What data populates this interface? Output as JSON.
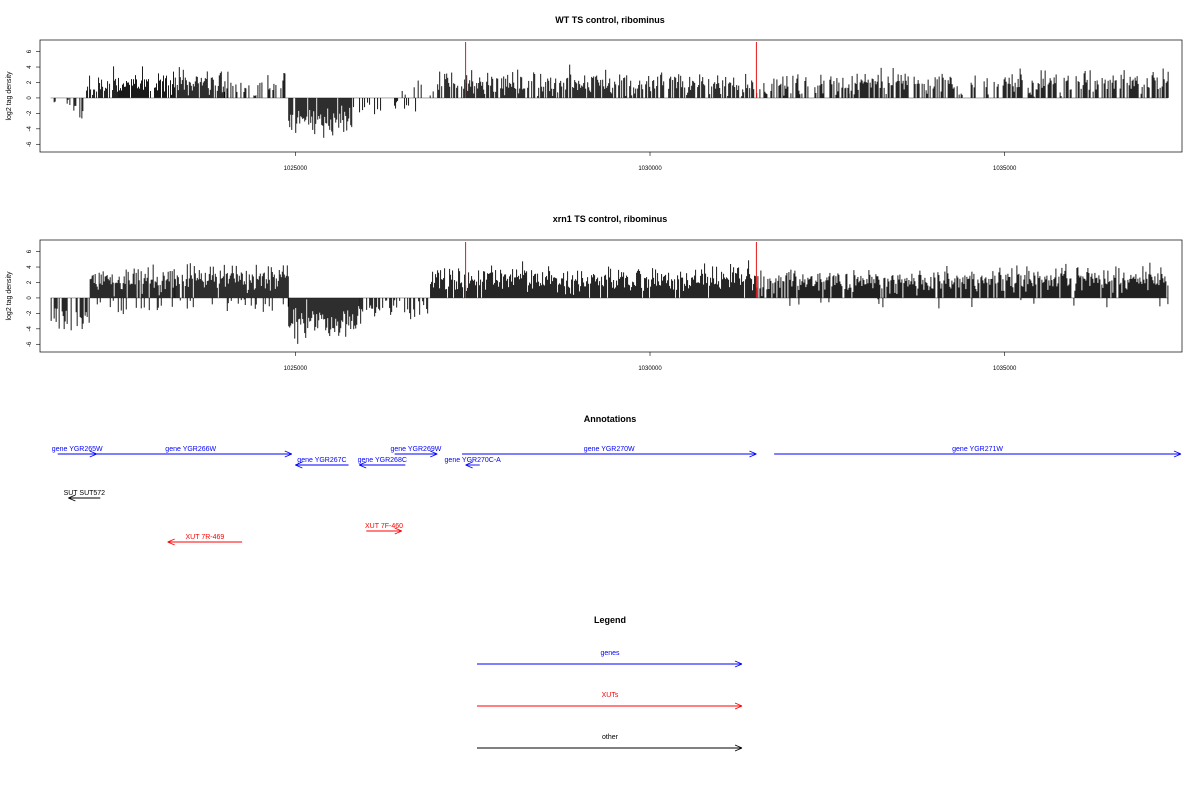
{
  "chart_data": [
    {
      "type": "bar",
      "title": "WT TS control, ribominus",
      "ylabel": "log2 tag density",
      "xlabel": "",
      "xlim": [
        1021400,
        1037500
      ],
      "ylim": [
        -7,
        7.5
      ],
      "x_ticks": [
        "1025000",
        "1030000",
        "1035000"
      ],
      "y_ticks": [
        "6",
        "4",
        "2",
        "0",
        "-2",
        "-4",
        "-6"
      ],
      "grid": false,
      "markers": [
        1027400,
        1031500
      ],
      "marker_color": "#e41a1c",
      "baseline_color": "#999999",
      "bar_color": "#000000",
      "regions": [
        {
          "from": 1021550,
          "to": 1021800,
          "mean": -0.8,
          "sd": 0.5,
          "density": 0.15
        },
        {
          "from": 1021800,
          "to": 1022000,
          "mean": -1.8,
          "sd": 0.7,
          "density": 0.5
        },
        {
          "from": 1022050,
          "to": 1022500,
          "mean": 1.6,
          "sd": 0.7,
          "density": 0.6
        },
        {
          "from": 1022500,
          "to": 1023300,
          "mean": 1.9,
          "sd": 0.8,
          "density": 0.85
        },
        {
          "from": 1023300,
          "to": 1024000,
          "mean": 2.2,
          "sd": 0.9,
          "density": 0.9
        },
        {
          "from": 1024000,
          "to": 1024900,
          "mean": 1.5,
          "sd": 0.8,
          "density": 0.5
        },
        {
          "from": 1024900,
          "to": 1025800,
          "mean": -3.0,
          "sd": 1.0,
          "density": 0.95
        },
        {
          "from": 1025800,
          "to": 1026700,
          "mean": -1.2,
          "sd": 0.6,
          "density": 0.35
        },
        {
          "from": 1026400,
          "to": 1027000,
          "mean": 1.0,
          "sd": 0.5,
          "density": 0.2
        },
        {
          "from": 1027000,
          "to": 1031500,
          "mean": 1.9,
          "sd": 0.8,
          "density": 0.75
        },
        {
          "from": 1031500,
          "to": 1032800,
          "mean": 1.8,
          "sd": 0.8,
          "density": 0.6
        },
        {
          "from": 1032800,
          "to": 1037300,
          "mean": 2.0,
          "sd": 0.8,
          "density": 0.65
        }
      ]
    },
    {
      "type": "bar",
      "title": "xrn1 TS control, ribominus",
      "ylabel": "log2 tag density",
      "xlabel": "",
      "xlim": [
        1021400,
        1037500
      ],
      "ylim": [
        -7,
        7.5
      ],
      "x_ticks": [
        "1025000",
        "1030000",
        "1035000"
      ],
      "y_ticks": [
        "6",
        "4",
        "2",
        "0",
        "-2",
        "-4",
        "-6"
      ],
      "grid": false,
      "markers": [
        1027400,
        1031500
      ],
      "marker_color": "#e41a1c",
      "baseline_color": "#999999",
      "bar_color": "#000000",
      "regions": [
        {
          "from": 1021550,
          "to": 1022100,
          "mean": -2.8,
          "sd": 0.9,
          "density": 0.7
        },
        {
          "from": 1022100,
          "to": 1023300,
          "mean": 2.4,
          "sd": 0.8,
          "density": 0.95
        },
        {
          "from": 1023300,
          "to": 1024900,
          "mean": 2.6,
          "sd": 0.9,
          "density": 0.95
        },
        {
          "from": 1022200,
          "to": 1024900,
          "mean": -1.0,
          "sd": 0.5,
          "density": 0.2
        },
        {
          "from": 1024900,
          "to": 1025900,
          "mean": -3.2,
          "sd": 1.1,
          "density": 0.98
        },
        {
          "from": 1025900,
          "to": 1026900,
          "mean": -1.5,
          "sd": 0.8,
          "density": 0.6
        },
        {
          "from": 1026900,
          "to": 1031500,
          "mean": 2.5,
          "sd": 0.9,
          "density": 0.95
        },
        {
          "from": 1031500,
          "to": 1037300,
          "mean": 2.3,
          "sd": 0.8,
          "density": 0.9
        },
        {
          "from": 1031500,
          "to": 1037300,
          "mean": -0.8,
          "sd": 0.5,
          "density": 0.05
        }
      ]
    }
  ],
  "annotations": {
    "title": "Annotations",
    "features": [
      {
        "label": "gene YGR265W",
        "start": 1021650,
        "end": 1022200,
        "strand": "+",
        "row": 0,
        "kind": "gene"
      },
      {
        "label": "gene YGR266W",
        "start": 1022100,
        "end": 1024950,
        "strand": "+",
        "row": 0,
        "kind": "gene"
      },
      {
        "label": "gene YGR267C",
        "start": 1025000,
        "end": 1025750,
        "strand": "-",
        "row": 1,
        "kind": "gene"
      },
      {
        "label": "gene YGR268C",
        "start": 1025900,
        "end": 1026550,
        "strand": "-",
        "row": 1,
        "kind": "gene"
      },
      {
        "label": "gene YGR269W",
        "start": 1026400,
        "end": 1027000,
        "strand": "+",
        "row": 0,
        "kind": "gene"
      },
      {
        "label": "gene YGR270C-A",
        "start": 1027400,
        "end": 1027600,
        "strand": "-",
        "row": 1,
        "kind": "gene"
      },
      {
        "label": "gene YGR270W",
        "start": 1027350,
        "end": 1031500,
        "strand": "+",
        "row": 0,
        "kind": "gene"
      },
      {
        "label": "gene YGR271W",
        "start": 1031750,
        "end": 1037500,
        "strand": "+",
        "row": 0,
        "kind": "gene"
      },
      {
        "label": "SUT SUT572",
        "start": 1021800,
        "end": 1022250,
        "strand": "-",
        "row": 4,
        "kind": "other"
      },
      {
        "label": "XUT 7R-469",
        "start": 1023200,
        "end": 1024250,
        "strand": "-",
        "row": 8,
        "kind": "xut"
      },
      {
        "label": "XUT 7F-460",
        "start": 1026000,
        "end": 1026500,
        "strand": "+",
        "row": 7,
        "kind": "xut"
      }
    ]
  },
  "legend": {
    "title": "Legend",
    "items": [
      {
        "label": "genes",
        "kind": "gene"
      },
      {
        "label": "XUTs",
        "kind": "xut"
      },
      {
        "label": "other",
        "kind": "other"
      }
    ]
  },
  "colors": {
    "gene": "#0000ff",
    "xut": "#ff0000",
    "other": "#000000"
  }
}
